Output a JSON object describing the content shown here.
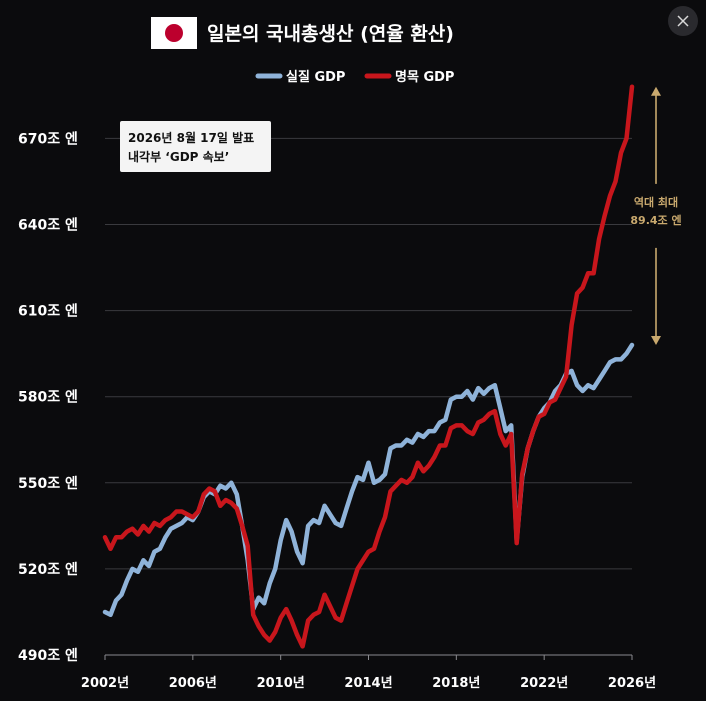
{
  "chart_data": {
    "type": "line",
    "title": "일본의 국내총생산 (연율 환산)",
    "x_unit": "year",
    "xlim": [
      2002,
      2026
    ],
    "ylim": [
      490,
      690
    ],
    "x_ticks": [
      {
        "value": 2002,
        "label": "2002년"
      },
      {
        "value": 2006,
        "label": "2006년"
      },
      {
        "value": 2010,
        "label": "2010년"
      },
      {
        "value": 2014,
        "label": "2014년"
      },
      {
        "value": 2018,
        "label": "2018년"
      },
      {
        "value": 2022,
        "label": "2022년"
      },
      {
        "value": 2026,
        "label": "2026년"
      }
    ],
    "y_ticks": [
      {
        "value": 490,
        "label": "490조 엔"
      },
      {
        "value": 520,
        "label": "520조 엔"
      },
      {
        "value": 550,
        "label": "550조 엔"
      },
      {
        "value": 580,
        "label": "580조 엔"
      },
      {
        "value": 610,
        "label": "610조 엔"
      },
      {
        "value": 640,
        "label": "640조 엔"
      },
      {
        "value": 670,
        "label": "670조 엔"
      }
    ],
    "legend_position": "top",
    "grid": "horizontal",
    "series": [
      {
        "name": "실질 GDP",
        "color": "#8fb3d9",
        "points": [
          [
            2002.0,
            505
          ],
          [
            2002.25,
            504
          ],
          [
            2002.5,
            509
          ],
          [
            2002.75,
            511
          ],
          [
            2003.0,
            516
          ],
          [
            2003.25,
            520
          ],
          [
            2003.5,
            519
          ],
          [
            2003.75,
            523
          ],
          [
            2004.0,
            521
          ],
          [
            2004.25,
            526
          ],
          [
            2004.5,
            527
          ],
          [
            2004.75,
            531
          ],
          [
            2005.0,
            534
          ],
          [
            2005.25,
            535
          ],
          [
            2005.5,
            536
          ],
          [
            2005.75,
            538
          ],
          [
            2006.0,
            537
          ],
          [
            2006.25,
            540
          ],
          [
            2006.5,
            545
          ],
          [
            2006.75,
            547
          ],
          [
            2007.0,
            546
          ],
          [
            2007.25,
            549
          ],
          [
            2007.5,
            548
          ],
          [
            2007.75,
            550
          ],
          [
            2008.0,
            546
          ],
          [
            2008.25,
            535
          ],
          [
            2008.5,
            523
          ],
          [
            2008.75,
            506
          ],
          [
            2009.0,
            510
          ],
          [
            2009.25,
            508
          ],
          [
            2009.5,
            515
          ],
          [
            2009.75,
            520
          ],
          [
            2010.0,
            530
          ],
          [
            2010.25,
            537
          ],
          [
            2010.5,
            533
          ],
          [
            2010.75,
            526
          ],
          [
            2011.0,
            522
          ],
          [
            2011.25,
            535
          ],
          [
            2011.5,
            537
          ],
          [
            2011.75,
            536
          ],
          [
            2012.0,
            542
          ],
          [
            2012.25,
            539
          ],
          [
            2012.5,
            536
          ],
          [
            2012.75,
            535
          ],
          [
            2013.0,
            541
          ],
          [
            2013.25,
            547
          ],
          [
            2013.5,
            552
          ],
          [
            2013.75,
            551
          ],
          [
            2014.0,
            557
          ],
          [
            2014.25,
            550
          ],
          [
            2014.5,
            551
          ],
          [
            2014.75,
            553
          ],
          [
            2015.0,
            562
          ],
          [
            2015.25,
            563
          ],
          [
            2015.5,
            563
          ],
          [
            2015.75,
            565
          ],
          [
            2016.0,
            564
          ],
          [
            2016.25,
            567
          ],
          [
            2016.5,
            566
          ],
          [
            2016.75,
            568
          ],
          [
            2017.0,
            568
          ],
          [
            2017.25,
            571
          ],
          [
            2017.5,
            572
          ],
          [
            2017.75,
            579
          ],
          [
            2018.0,
            580
          ],
          [
            2018.25,
            580
          ],
          [
            2018.5,
            582
          ],
          [
            2018.75,
            579
          ],
          [
            2019.0,
            583
          ],
          [
            2019.25,
            581
          ],
          [
            2019.5,
            583
          ],
          [
            2019.75,
            584
          ],
          [
            2020.0,
            576
          ],
          [
            2020.25,
            568
          ],
          [
            2020.5,
            570
          ],
          [
            2020.75,
            530
          ],
          [
            2021.0,
            552
          ],
          [
            2021.25,
            562
          ],
          [
            2021.5,
            568
          ],
          [
            2021.75,
            573
          ],
          [
            2022.0,
            576
          ],
          [
            2022.25,
            578
          ],
          [
            2022.5,
            582
          ],
          [
            2022.75,
            584
          ],
          [
            2023.0,
            588
          ],
          [
            2023.25,
            589
          ],
          [
            2023.5,
            584
          ],
          [
            2023.75,
            582
          ],
          [
            2024.0,
            584
          ],
          [
            2024.25,
            583
          ],
          [
            2024.5,
            586
          ],
          [
            2024.75,
            589
          ],
          [
            2025.0,
            592
          ],
          [
            2025.25,
            593
          ],
          [
            2025.5,
            593
          ],
          [
            2025.75,
            595
          ],
          [
            2026.0,
            598
          ]
        ]
      },
      {
        "name": "명목 GDP",
        "color": "#c8161c",
        "points": [
          [
            2002.0,
            531
          ],
          [
            2002.25,
            527
          ],
          [
            2002.5,
            531
          ],
          [
            2002.75,
            531
          ],
          [
            2003.0,
            533
          ],
          [
            2003.25,
            534
          ],
          [
            2003.5,
            532
          ],
          [
            2003.75,
            535
          ],
          [
            2004.0,
            533
          ],
          [
            2004.25,
            536
          ],
          [
            2004.5,
            535
          ],
          [
            2004.75,
            537
          ],
          [
            2005.0,
            538
          ],
          [
            2005.25,
            540
          ],
          [
            2005.5,
            540
          ],
          [
            2005.75,
            539
          ],
          [
            2006.0,
            538
          ],
          [
            2006.25,
            540
          ],
          [
            2006.5,
            546
          ],
          [
            2006.75,
            548
          ],
          [
            2007.0,
            547
          ],
          [
            2007.25,
            542
          ],
          [
            2007.5,
            544
          ],
          [
            2007.75,
            543
          ],
          [
            2008.0,
            541
          ],
          [
            2008.25,
            535
          ],
          [
            2008.5,
            528
          ],
          [
            2008.75,
            504
          ],
          [
            2009.0,
            500
          ],
          [
            2009.25,
            497
          ],
          [
            2009.5,
            495
          ],
          [
            2009.75,
            498
          ],
          [
            2010.0,
            503
          ],
          [
            2010.25,
            506
          ],
          [
            2010.5,
            502
          ],
          [
            2010.75,
            497
          ],
          [
            2011.0,
            493
          ],
          [
            2011.25,
            502
          ],
          [
            2011.5,
            504
          ],
          [
            2011.75,
            505
          ],
          [
            2012.0,
            511
          ],
          [
            2012.25,
            507
          ],
          [
            2012.5,
            503
          ],
          [
            2012.75,
            502
          ],
          [
            2013.0,
            508
          ],
          [
            2013.25,
            514
          ],
          [
            2013.5,
            520
          ],
          [
            2013.75,
            523
          ],
          [
            2014.0,
            526
          ],
          [
            2014.25,
            527
          ],
          [
            2014.5,
            533
          ],
          [
            2014.75,
            538
          ],
          [
            2015.0,
            547
          ],
          [
            2015.25,
            549
          ],
          [
            2015.5,
            551
          ],
          [
            2015.75,
            550
          ],
          [
            2016.0,
            552
          ],
          [
            2016.25,
            557
          ],
          [
            2016.5,
            554
          ],
          [
            2016.75,
            556
          ],
          [
            2017.0,
            559
          ],
          [
            2017.25,
            563
          ],
          [
            2017.5,
            563
          ],
          [
            2017.75,
            569
          ],
          [
            2018.0,
            570
          ],
          [
            2018.25,
            570
          ],
          [
            2018.5,
            568
          ],
          [
            2018.75,
            567
          ],
          [
            2019.0,
            571
          ],
          [
            2019.25,
            572
          ],
          [
            2019.5,
            574
          ],
          [
            2019.75,
            575
          ],
          [
            2020.0,
            567
          ],
          [
            2020.25,
            563
          ],
          [
            2020.5,
            567
          ],
          [
            2020.75,
            529
          ],
          [
            2021.0,
            553
          ],
          [
            2021.25,
            562
          ],
          [
            2021.5,
            568
          ],
          [
            2021.75,
            573
          ],
          [
            2022.0,
            574
          ],
          [
            2022.25,
            578
          ],
          [
            2022.5,
            579
          ],
          [
            2022.75,
            583
          ],
          [
            2023.0,
            587
          ],
          [
            2023.25,
            605
          ],
          [
            2023.5,
            616
          ],
          [
            2023.75,
            618
          ],
          [
            2024.0,
            623
          ],
          [
            2024.25,
            623
          ],
          [
            2024.5,
            635
          ],
          [
            2024.75,
            643
          ],
          [
            2025.0,
            650
          ],
          [
            2025.25,
            655
          ],
          [
            2025.5,
            665
          ],
          [
            2025.75,
            670
          ],
          [
            2026.0,
            688
          ]
        ]
      }
    ],
    "annotations": {
      "date_box": [
        "2026년 8월 17일 발표",
        "내각부 ‘GDP 속보’"
      ],
      "gap_lines": [
        "역대 최대",
        "89.4조 엔"
      ]
    },
    "colors": {
      "background": "#0b0b0d",
      "grid": "#3a3a3e",
      "gap_arrow": "#c9a96e",
      "flag_red": "#bc002d"
    }
  },
  "ui": {
    "close_icon": "close-icon"
  }
}
